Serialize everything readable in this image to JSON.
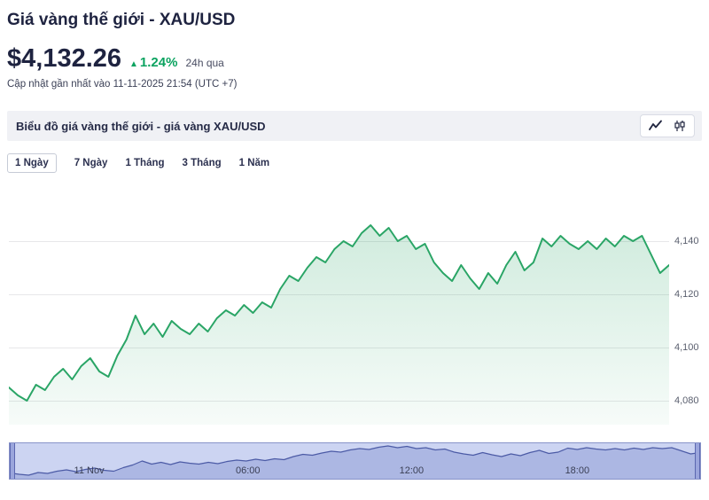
{
  "header": {
    "title": "Giá vàng thế giới - XAU/USD",
    "price": "$4,132.26",
    "up_arrow": "▲",
    "change_percent": "1.24%",
    "change_period": "24h qua",
    "updated_text": "Cập nhật gần nhất vào 11-11-2025 21:54 (UTC +7)"
  },
  "chart_header": {
    "label": "Biểu đồ giá vàng thế giới - giá vàng XAU/USD",
    "icons": [
      "line-chart-icon",
      "candlestick-icon"
    ]
  },
  "tabs": [
    {
      "label": "1 Ngày",
      "active": true
    },
    {
      "label": "7 Ngày",
      "active": false
    },
    {
      "label": "1 Tháng",
      "active": false
    },
    {
      "label": "3 Tháng",
      "active": false
    },
    {
      "label": "1 Năm",
      "active": false
    }
  ],
  "colors": {
    "accent_green": "#0ba360",
    "line_green": "#2aa566",
    "navy_text": "#1e2340",
    "navigator_mask": "#ccd4f2",
    "navigator_line": "#4c5ba6"
  },
  "chart_data": {
    "type": "area",
    "title": "Biểu đồ giá vàng thế giới - giá vàng XAU/USD",
    "series_name": "XAU/USD",
    "xlabel": "",
    "ylabel": "",
    "grid": true,
    "legend": "none",
    "ylim": [
      4071,
      4163
    ],
    "navigator_ylim": [
      4072,
      4152
    ],
    "y_ticks": [
      4080,
      4100,
      4120,
      4140
    ],
    "y_tick_labels": [
      "4,080",
      "4,100",
      "4,120",
      "4,140"
    ],
    "x_labels": [
      {
        "label": "11 Nov",
        "pos": 0.115
      },
      {
        "label": "06:00",
        "pos": 0.345
      },
      {
        "label": "12:00",
        "pos": 0.582
      },
      {
        "label": "18:00",
        "pos": 0.822
      }
    ],
    "values": [
      4085,
      4082,
      4080,
      4086,
      4084,
      4089,
      4092,
      4088,
      4093,
      4096,
      4091,
      4089,
      4097,
      4103,
      4112,
      4105,
      4109,
      4104,
      4110,
      4107,
      4105,
      4109,
      4106,
      4111,
      4114,
      4112,
      4116,
      4113,
      4117,
      4115,
      4122,
      4127,
      4125,
      4130,
      4134,
      4132,
      4137,
      4140,
      4138,
      4143,
      4146,
      4142,
      4145,
      4140,
      4142,
      4137,
      4139,
      4132,
      4128,
      4125,
      4131,
      4126,
      4122,
      4128,
      4124,
      4131,
      4136,
      4129,
      4132,
      4141,
      4138,
      4142,
      4139,
      4137,
      4140,
      4137,
      4141,
      4138,
      4142,
      4140,
      4142,
      4135,
      4128,
      4131
    ]
  },
  "navigator": {
    "x_labels": [
      "11 Nov",
      "06:00",
      "12:00",
      "18:00"
    ]
  }
}
